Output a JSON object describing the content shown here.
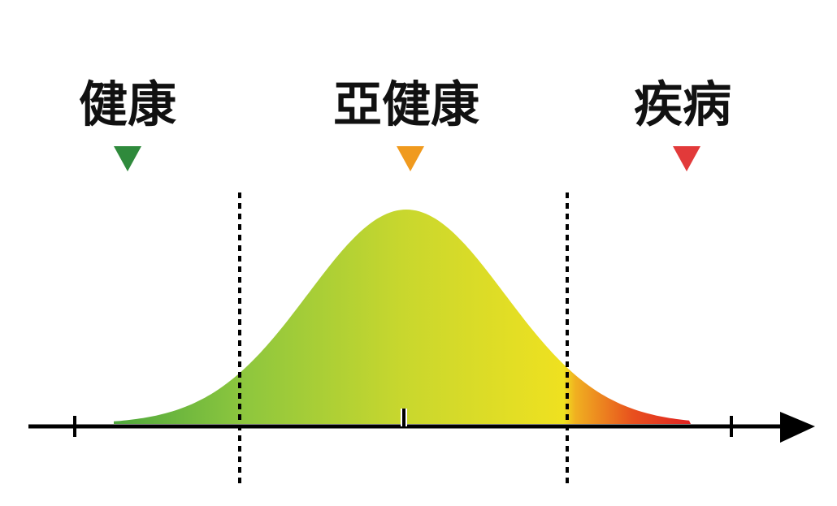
{
  "labels": [
    "健康",
    "亞健康",
    "疾病"
  ]
}
